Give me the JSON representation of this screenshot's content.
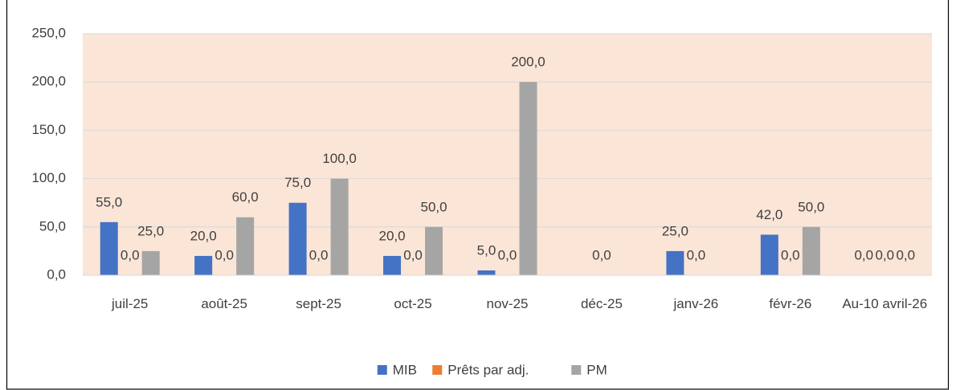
{
  "chart_data": {
    "type": "bar",
    "categories": [
      "juil-25",
      "août-25",
      "sept-25",
      "oct-25",
      "nov-25",
      "déc-25",
      "janv-26",
      "févr-26",
      "Au-10 avril-26"
    ],
    "series": [
      {
        "name": "MIB",
        "color": "#4472c4",
        "values": [
          55,
          20,
          75,
          20,
          5,
          null,
          25,
          42,
          0
        ],
        "value_labels": [
          "55,0",
          "20,0",
          "75,0",
          "20,0",
          "5,0",
          null,
          "25,0",
          "42,0",
          "0,0"
        ]
      },
      {
        "name": "Prêts par adj.",
        "color": "#ed7d31",
        "values": [
          0,
          0,
          0,
          0,
          0,
          0,
          0,
          0,
          0
        ],
        "value_labels": [
          "0,0",
          "0,0",
          "0,0",
          "0,0",
          "0,0",
          "0,0",
          "0,0",
          "0,0",
          "0,0"
        ]
      },
      {
        "name": "PM",
        "color": "#a5a5a5",
        "values": [
          25,
          60,
          100,
          50,
          200,
          null,
          null,
          50,
          0
        ],
        "value_labels": [
          "25,0",
          "60,0",
          "100,0",
          "50,0",
          "200,0",
          null,
          null,
          "50,0",
          "0,0"
        ]
      }
    ],
    "ylim": [
      0,
      250
    ],
    "yticks": [
      {
        "value": 0,
        "label": "0,0"
      },
      {
        "value": 50,
        "label": "50,0"
      },
      {
        "value": 100,
        "label": "100,0"
      },
      {
        "value": 150,
        "label": "150,0"
      },
      {
        "value": 200,
        "label": "200,0"
      },
      {
        "value": 250,
        "label": "250,0"
      }
    ],
    "grid": true,
    "legend": "bottom",
    "plot_background": "#fbe5d6"
  }
}
